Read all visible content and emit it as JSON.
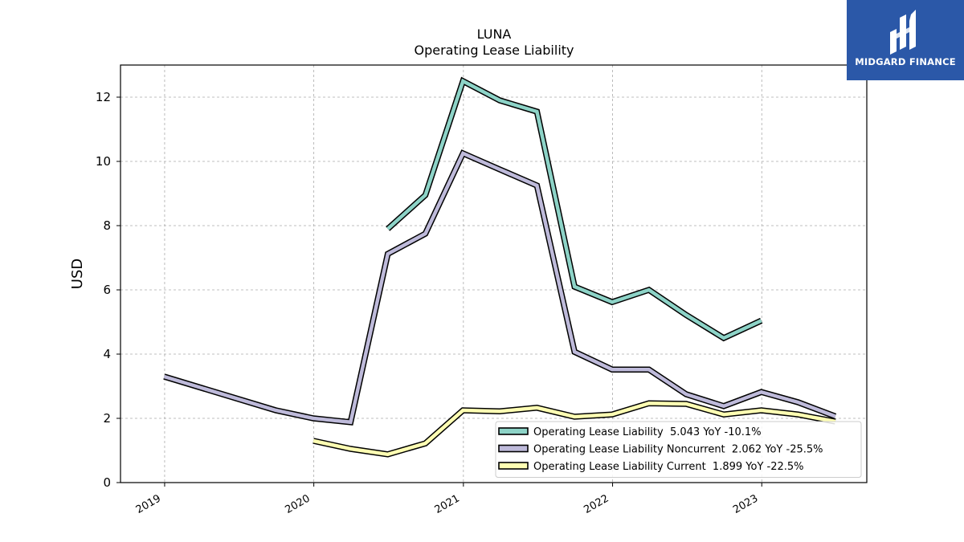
{
  "chart_data": {
    "type": "line",
    "title": "LUNA",
    "subtitle": "Operating Lease Liability",
    "xlabel": "",
    "ylabel": "USD",
    "ylim": [
      0,
      13
    ],
    "yticks": [
      0,
      2,
      4,
      6,
      8,
      10,
      12
    ],
    "xlim": [
      "2018-09-15",
      "2023-09-15"
    ],
    "xticks": [
      "2019-01-01",
      "2020-01-01",
      "2021-01-01",
      "2022-01-01",
      "2023-01-01"
    ],
    "xtick_labels": [
      "2019",
      "2020",
      "2021",
      "2022",
      "2023"
    ],
    "grid": true,
    "legend_position": "lower-right",
    "series": [
      {
        "name": "Operating Lease Liability",
        "legend_label": "Operating Lease Liability  5.043 YoY -10.1%",
        "color": "#8dd3c7",
        "points": [
          [
            "2020-06-30",
            7.9
          ],
          [
            "2020-09-30",
            8.95
          ],
          [
            "2020-12-31",
            12.5
          ],
          [
            "2021-03-31",
            11.9
          ],
          [
            "2021-06-30",
            11.55
          ],
          [
            "2021-09-30",
            6.1
          ],
          [
            "2021-12-31",
            5.62
          ],
          [
            "2022-03-31",
            6.0
          ],
          [
            "2022-06-30",
            5.22
          ],
          [
            "2022-09-30",
            4.5
          ],
          [
            "2022-12-31",
            5.043
          ]
        ]
      },
      {
        "name": "Operating Lease Liability Noncurrent",
        "legend_label": "Operating Lease Liability Noncurrent  2.062 YoY -25.5%",
        "color": "#bebada",
        "points": [
          [
            "2018-12-31",
            3.3
          ],
          [
            "2019-09-30",
            2.25
          ],
          [
            "2019-12-31",
            2.0
          ],
          [
            "2020-03-31",
            1.88
          ],
          [
            "2020-06-30",
            7.12
          ],
          [
            "2020-09-30",
            7.75
          ],
          [
            "2020-12-31",
            10.25
          ],
          [
            "2021-03-31",
            9.75
          ],
          [
            "2021-06-30",
            9.25
          ],
          [
            "2021-09-30",
            4.07
          ],
          [
            "2021-12-31",
            3.52
          ],
          [
            "2022-03-31",
            3.52
          ],
          [
            "2022-06-30",
            2.75
          ],
          [
            "2022-09-30",
            2.38
          ],
          [
            "2022-12-31",
            2.82
          ],
          [
            "2023-03-31",
            2.5
          ],
          [
            "2023-06-30",
            2.062
          ]
        ]
      },
      {
        "name": "Operating Lease Liability Current",
        "legend_label": "Operating Lease Liability Current  1.899 YoY -22.5%",
        "color": "#ffffb3",
        "points": [
          [
            "2019-12-31",
            1.3
          ],
          [
            "2020-03-31",
            1.05
          ],
          [
            "2020-06-30",
            0.88
          ],
          [
            "2020-09-30",
            1.22
          ],
          [
            "2020-12-31",
            2.25
          ],
          [
            "2021-03-31",
            2.22
          ],
          [
            "2021-06-30",
            2.33
          ],
          [
            "2021-09-30",
            2.05
          ],
          [
            "2021-12-31",
            2.12
          ],
          [
            "2022-03-31",
            2.47
          ],
          [
            "2022-06-30",
            2.45
          ],
          [
            "2022-09-30",
            2.12
          ],
          [
            "2022-12-31",
            2.25
          ],
          [
            "2023-03-31",
            2.12
          ],
          [
            "2023-06-30",
            1.899
          ]
        ]
      }
    ]
  },
  "logo": {
    "text": "MIDGARD FINANCE",
    "background": "#2b58a8"
  }
}
